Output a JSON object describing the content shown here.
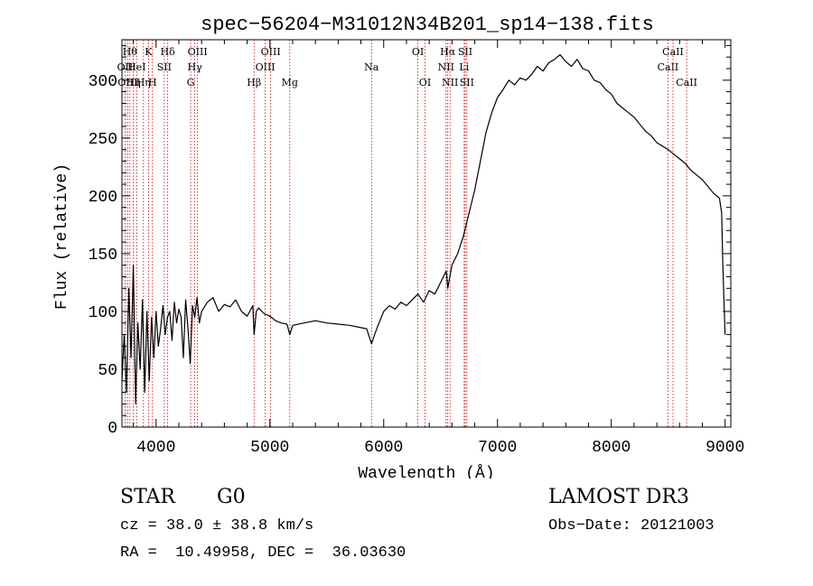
{
  "chart_data": {
    "type": "line",
    "title": "spec−56204−M31012N34B201_sp14−138.fits",
    "xlabel": "Wavelength (Å)",
    "ylabel": "Flux (relative)",
    "xlim": [
      3700,
      9050
    ],
    "ylim": [
      0,
      335
    ],
    "xticks": [
      4000,
      5000,
      6000,
      7000,
      8000,
      9000
    ],
    "xtick_labels": [
      "4000",
      "5000",
      "6000",
      "7000",
      "8000",
      "9000"
    ],
    "yticks": [
      0,
      50,
      100,
      150,
      200,
      250,
      300
    ],
    "ytick_labels": [
      "0",
      "50",
      "100",
      "150",
      "200",
      "250",
      "300"
    ],
    "series": [
      {
        "name": "flux",
        "x": [
          3700,
          3720,
          3740,
          3760,
          3780,
          3800,
          3820,
          3840,
          3860,
          3880,
          3900,
          3920,
          3940,
          3960,
          3980,
          4000,
          4020,
          4040,
          4060,
          4080,
          4100,
          4120,
          4140,
          4160,
          4180,
          4200,
          4220,
          4240,
          4260,
          4280,
          4300,
          4320,
          4340,
          4360,
          4380,
          4400,
          4450,
          4500,
          4550,
          4600,
          4650,
          4700,
          4750,
          4800,
          4850,
          4861,
          4880,
          4900,
          4950,
          5000,
          5050,
          5100,
          5150,
          5175,
          5200,
          5300,
          5400,
          5500,
          5600,
          5700,
          5800,
          5850,
          5893,
          5920,
          5950,
          6000,
          6050,
          6100,
          6150,
          6200,
          6250,
          6300,
          6350,
          6400,
          6450,
          6500,
          6550,
          6563,
          6600,
          6650,
          6700,
          6750,
          6800,
          6850,
          6900,
          6950,
          7000,
          7050,
          7100,
          7150,
          7200,
          7250,
          7300,
          7350,
          7400,
          7450,
          7500,
          7550,
          7600,
          7650,
          7700,
          7750,
          7800,
          7850,
          7900,
          7950,
          8000,
          8050,
          8100,
          8150,
          8200,
          8250,
          8300,
          8350,
          8400,
          8450,
          8500,
          8550,
          8600,
          8650,
          8700,
          8750,
          8800,
          8850,
          8900,
          8950,
          8970,
          8980,
          8990,
          9000
        ],
        "y": [
          40,
          80,
          30,
          120,
          60,
          140,
          20,
          90,
          50,
          110,
          30,
          100,
          40,
          95,
          60,
          100,
          70,
          85,
          105,
          80,
          95,
          100,
          75,
          108,
          90,
          102,
          95,
          60,
          110,
          85,
          55,
          105,
          95,
          112,
          90,
          100,
          108,
          112,
          100,
          106,
          104,
          110,
          100,
          96,
          105,
          80,
          100,
          103,
          98,
          96,
          92,
          90,
          89,
          80,
          88,
          90,
          92,
          90,
          89,
          88,
          86,
          85,
          72,
          80,
          88,
          100,
          105,
          102,
          108,
          105,
          110,
          115,
          108,
          118,
          115,
          125,
          135,
          120,
          140,
          150,
          165,
          185,
          205,
          230,
          255,
          272,
          285,
          292,
          300,
          296,
          302,
          300,
          305,
          312,
          308,
          315,
          318,
          322,
          316,
          312,
          318,
          310,
          308,
          300,
          298,
          292,
          288,
          280,
          276,
          272,
          268,
          262,
          256,
          252,
          246,
          243,
          240,
          236,
          232,
          228,
          222,
          218,
          214,
          208,
          202,
          198,
          185,
          140,
          110,
          80
        ]
      }
    ],
    "line_markers": [
      {
        "wavelength": 3727,
        "labels": [
          "OII"
        ],
        "row": 1
      },
      {
        "wavelength": 3750,
        "labels": [
          "OIII"
        ],
        "row": 2
      },
      {
        "wavelength": 3770,
        "labels": [
          "Hθ"
        ],
        "row": 0
      },
      {
        "wavelength": 3800,
        "labels": [
          "Hη"
        ],
        "row": 2
      },
      {
        "wavelength": 3830,
        "labels": [
          "HeI"
        ],
        "row": 1
      },
      {
        "wavelength": 3889,
        "labels": [
          "Hη"
        ],
        "row": 2
      },
      {
        "wavelength": 3934,
        "labels": [
          "K"
        ],
        "row": 0
      },
      {
        "wavelength": 3968,
        "labels": [
          "H"
        ],
        "row": 2
      },
      {
        "wavelength": 4072,
        "labels": [
          "SII"
        ],
        "row": 1
      },
      {
        "wavelength": 4102,
        "labels": [
          "Hδ"
        ],
        "row": 0
      },
      {
        "wavelength": 4304,
        "labels": [
          "G"
        ],
        "row": 2
      },
      {
        "wavelength": 4340,
        "labels": [
          "Hγ"
        ],
        "row": 1
      },
      {
        "wavelength": 4364,
        "labels": [
          "OIII"
        ],
        "row": 0
      },
      {
        "wavelength": 4861,
        "labels": [
          "Hβ"
        ],
        "row": 2
      },
      {
        "wavelength": 4959,
        "labels": [
          "OIII"
        ],
        "row": 1
      },
      {
        "wavelength": 5007,
        "labels": [
          "OIII"
        ],
        "row": 0
      },
      {
        "wavelength": 5175,
        "labels": [
          "Mg"
        ],
        "row": 2
      },
      {
        "wavelength": 5893,
        "labels": [
          "Na"
        ],
        "row": 1
      },
      {
        "wavelength": 6300,
        "labels": [
          "OI"
        ],
        "row": 0
      },
      {
        "wavelength": 6363,
        "labels": [
          "OI"
        ],
        "row": 2
      },
      {
        "wavelength": 6548,
        "labels": [
          "NII"
        ],
        "row": 1
      },
      {
        "wavelength": 6563,
        "labels": [
          "Hα"
        ],
        "row": 0
      },
      {
        "wavelength": 6583,
        "labels": [
          "NII"
        ],
        "row": 2
      },
      {
        "wavelength": 6707,
        "labels": [
          "Li"
        ],
        "row": 1
      },
      {
        "wavelength": 6716,
        "labels": [
          "SII"
        ],
        "row": 0
      },
      {
        "wavelength": 6731,
        "labels": [
          "SII"
        ],
        "row": 2
      },
      {
        "wavelength": 8498,
        "labels": [
          "CaII"
        ],
        "row": 1
      },
      {
        "wavelength": 8542,
        "labels": [
          "CaII"
        ],
        "row": 0
      },
      {
        "wavelength": 8662,
        "labels": [
          "CaII"
        ],
        "row": 2
      }
    ]
  },
  "footer": {
    "object_type": "STAR",
    "subclass": "G0",
    "survey": "LAMOST DR3",
    "redshift": "cz = 38.0 ± 38.8 km/s",
    "obs_date": "Obs−Date: 20121003",
    "coords": "RA =  10.49958, DEC =  36.03630"
  },
  "colors": {
    "axis": "#000000",
    "spectrum": "#000000",
    "line_marker": "#cc0000"
  }
}
